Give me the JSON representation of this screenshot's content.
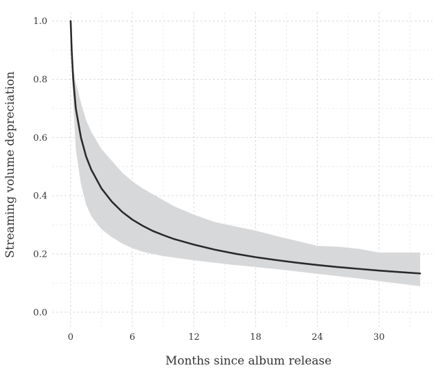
{
  "chart_data": {
    "type": "line",
    "title": "",
    "xlabel": "Months since album release",
    "ylabel": "Streaming volume depreciation",
    "xlim": [
      -1.8,
      35.2
    ],
    "ylim": [
      -0.05,
      1.03
    ],
    "xticks": [
      0,
      6,
      12,
      18,
      24,
      30
    ],
    "xtick_labels": [
      "0",
      "6",
      "12",
      "18",
      "24",
      "30"
    ],
    "yticks": [
      0.0,
      0.2,
      0.4,
      0.6,
      0.8,
      1.0
    ],
    "ytick_labels": [
      "0.0",
      "0.2",
      "0.4",
      "0.6",
      "0.8",
      "1.0"
    ],
    "grid": true,
    "line_color": "#2a2a2a",
    "band_color": "#d7d8da",
    "series": [
      {
        "x": [
          0,
          0.1,
          0.25,
          0.5,
          1,
          1.5,
          2,
          3,
          4,
          5,
          6,
          7,
          8,
          9,
          10,
          12,
          14,
          16,
          18,
          20,
          22,
          24,
          26,
          28,
          30,
          32,
          34
        ],
        "y": [
          1.0,
          0.9,
          0.8,
          0.7,
          0.6,
          0.535,
          0.49,
          0.425,
          0.38,
          0.345,
          0.318,
          0.297,
          0.279,
          0.265,
          0.252,
          0.232,
          0.215,
          0.201,
          0.189,
          0.179,
          0.17,
          0.162,
          0.155,
          0.149,
          0.143,
          0.138,
          0.133
        ],
        "band_upper": [
          1.0,
          0.88,
          0.84,
          0.79,
          0.72,
          0.66,
          0.62,
          0.56,
          0.52,
          0.48,
          0.45,
          0.425,
          0.405,
          0.385,
          0.365,
          0.335,
          0.31,
          0.295,
          0.28,
          0.262,
          0.245,
          0.228,
          0.225,
          0.218,
          0.205,
          0.205,
          0.205
        ],
        "band_lower": [
          1.0,
          0.85,
          0.72,
          0.56,
          0.44,
          0.37,
          0.33,
          0.285,
          0.258,
          0.236,
          0.22,
          0.208,
          0.2,
          0.193,
          0.188,
          0.178,
          0.17,
          0.162,
          0.155,
          0.148,
          0.14,
          0.132,
          0.124,
          0.116,
          0.107,
          0.098,
          0.089
        ]
      }
    ]
  }
}
